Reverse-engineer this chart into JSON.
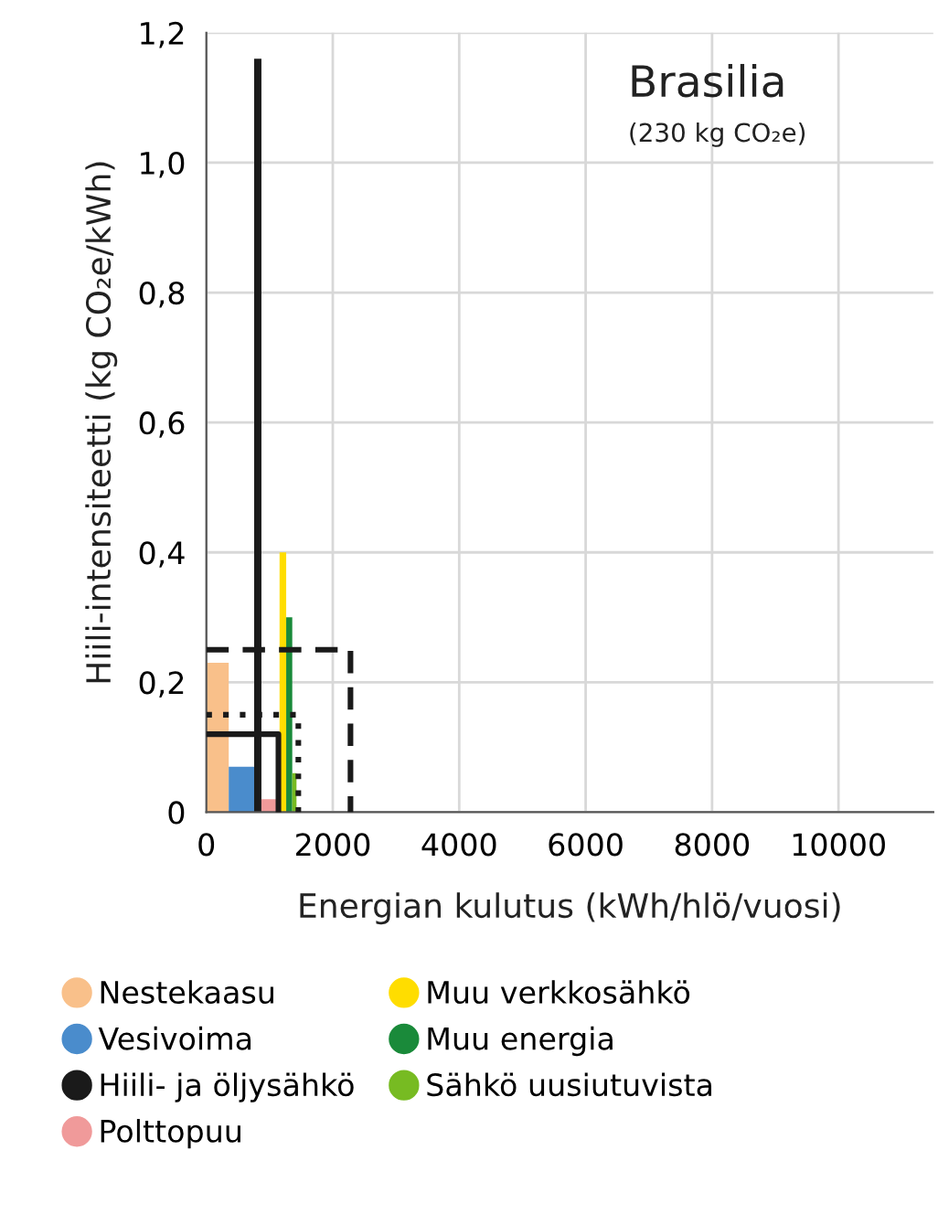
{
  "chart_data": {
    "type": "area",
    "title": "Brasilia",
    "subtitle": "(230 kg CO₂e)",
    "xlabel": "Energian kulutus (kWh/hlö/vuosi)",
    "ylabel": "Hiili-intensiteetti (kg CO₂e/kWh)",
    "xlim": [
      0,
      11500
    ],
    "xticks": [
      0,
      2000,
      4000,
      6000,
      8000,
      10000
    ],
    "ylim": [
      0,
      1.2
    ],
    "yticks": [
      0,
      {
        "value": 0.2,
        "label": "0,2"
      },
      {
        "value": 0.4,
        "label": "0,4"
      },
      {
        "value": 0.6,
        "label": "0,6"
      },
      {
        "value": 0.8,
        "label": "0,8"
      },
      {
        "value": 1.0,
        "label": "1,0"
      },
      {
        "value": 1.2,
        "label": "1,2"
      }
    ],
    "grid": true,
    "legend": "bottom",
    "series": [
      {
        "name": "Nestekaasu",
        "color": "#f9c08a",
        "x": [
          0,
          0,
          354,
          354
        ],
        "values": [
          0,
          0.23,
          0.23,
          0
        ]
      },
      {
        "name": "Vesivoima",
        "color": "#4a8ccc",
        "x": [
          354,
          354,
          756,
          756
        ],
        "values": [
          0,
          0.07,
          0.07,
          0
        ]
      },
      {
        "name": "Hiili- ja öljysähkö",
        "color": "#1a1a1a",
        "x": [
          756,
          756,
          871,
          871
        ],
        "values": [
          0,
          1.16,
          1.16,
          0
        ]
      },
      {
        "name": "Polttopuu",
        "color": "#f09a9a",
        "x": [
          871,
          871,
          1158,
          1158
        ],
        "values": [
          0,
          0.02,
          0.02,
          0
        ]
      },
      {
        "name": "Muu verkkosähkö",
        "color": "#ffdd00",
        "x": [
          1158,
          1158,
          1263,
          1263
        ],
        "values": [
          0,
          0.4,
          0.4,
          0
        ]
      },
      {
        "name": "Muu energia",
        "color": "#1a8a3a",
        "x": [
          1263,
          1263,
          1359,
          1359
        ],
        "values": [
          0,
          0.3,
          0.3,
          0
        ]
      },
      {
        "name": "Sähkö uusiutuvista",
        "color": "#77bb22",
        "x": [
          1359,
          1359,
          1426,
          1426
        ],
        "values": [
          0,
          0.06,
          0.06,
          0
        ]
      },
      {
        "type": "line",
        "color": "#1a1a1a",
        "line_style": "dashed",
        "x": [
          0,
          2280,
          2280
        ],
        "values": [
          0.25,
          0.25,
          0
        ]
      },
      {
        "type": "line",
        "color": "#1a1a1a",
        "line_style": "dotted",
        "x": [
          0,
          1455,
          1455
        ],
        "values": [
          0.15,
          0.15,
          0
        ]
      },
      {
        "type": "line",
        "color": "#1a1a1a",
        "line_style": "solid",
        "x": [
          0,
          1140,
          1140
        ],
        "values": [
          0.12,
          0.12,
          0
        ]
      }
    ]
  }
}
